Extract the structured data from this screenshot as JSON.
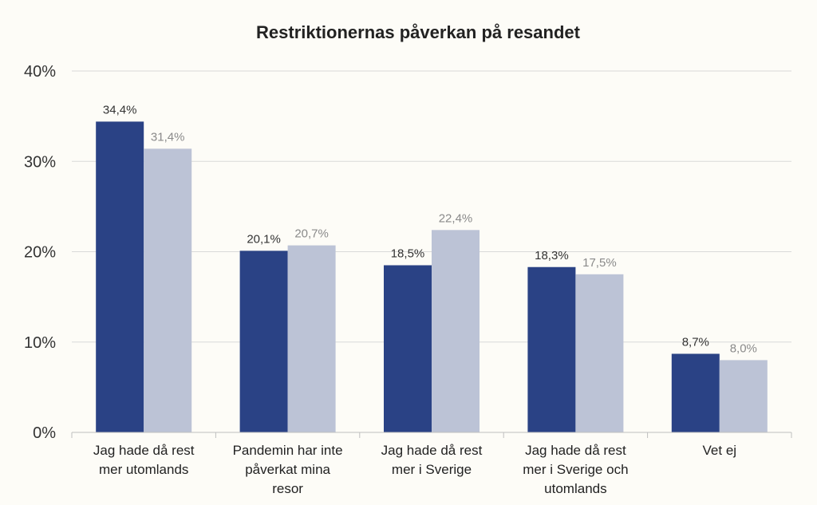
{
  "chart_data": {
    "type": "bar",
    "title": "Restriktionernas påverkan på resandet",
    "categories": [
      [
        "Jag hade då rest",
        "mer utomlands"
      ],
      [
        "Pandemin har inte",
        "påverkat mina",
        "resor"
      ],
      [
        "Jag hade då rest",
        "mer i Sverige"
      ],
      [
        "Jag hade då rest",
        "mer i Sverige och",
        "utomlands"
      ],
      [
        "Vet ej"
      ]
    ],
    "series": [
      {
        "color": "#2a4285",
        "label_color": "#333333",
        "values": [
          34.4,
          20.1,
          18.5,
          18.3,
          8.7
        ],
        "labels": [
          "34,4%",
          "20,1%",
          "18,5%",
          "18,3%",
          "8,7%"
        ]
      },
      {
        "color": "#bcc3d6",
        "label_color": "#8a8a8a",
        "values": [
          31.4,
          20.7,
          22.4,
          17.5,
          8.0
        ],
        "labels": [
          "31,4%",
          "20,7%",
          "22,4%",
          "17,5%",
          "8,0%"
        ]
      }
    ],
    "ylim": [
      0,
      40
    ],
    "yticks": [
      0,
      10,
      20,
      30,
      40
    ],
    "ytick_labels": [
      "0%",
      "10%",
      "20%",
      "30%",
      "40%"
    ],
    "grid": true,
    "legend": "none",
    "colors": {
      "grid": "#d9d9d9",
      "axis": "#bfbfbf"
    }
  }
}
